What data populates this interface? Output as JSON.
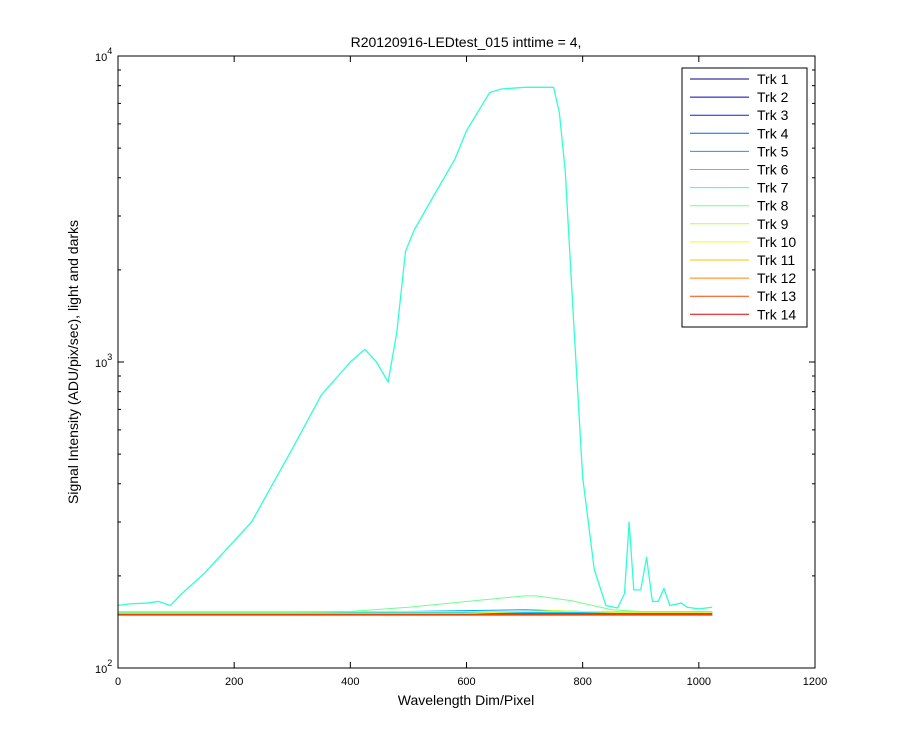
{
  "chart_data": {
    "type": "line",
    "title": "R20120916-LEDtest_015 inttime = 4,",
    "xlabel": "Wavelength Dim/Pixel",
    "ylabel": "Signal Intensity (ADU/pix/sec), light and darks",
    "xlim": [
      0,
      1200
    ],
    "ylim": [
      100,
      10000
    ],
    "yscale": "log",
    "grid": false,
    "legend_position": "top-right",
    "x_ticks": [
      0,
      200,
      400,
      600,
      800,
      1000,
      1200
    ],
    "x_tick_labels": [
      "0",
      "200",
      "400",
      "600",
      "800",
      "1000",
      "1200"
    ],
    "y_ticks": [
      100,
      1000,
      10000
    ],
    "y_tick_labels": [
      {
        "base": "10",
        "exp": "2"
      },
      {
        "base": "10",
        "exp": "3"
      },
      {
        "base": "10",
        "exp": "4"
      }
    ],
    "series": [
      {
        "name": "Trk 1",
        "color": "#00008f",
        "x": [
          0,
          1023
        ],
        "y": [
          149,
          149
        ]
      },
      {
        "name": "Trk 2",
        "color": "#0000c4",
        "x": [
          0,
          1023
        ],
        "y": [
          150,
          150
        ]
      },
      {
        "name": "Trk 3",
        "color": "#0020ff",
        "x": [
          0,
          1023
        ],
        "y": [
          151,
          151
        ]
      },
      {
        "name": "Trk 4",
        "color": "#0060ff",
        "x": [
          0,
          1023
        ],
        "y": [
          151,
          152
        ]
      },
      {
        "name": "Trk 5",
        "color": "#00a0ff",
        "x": [
          0,
          400,
          700,
          800,
          1023
        ],
        "y": [
          152,
          152,
          155,
          153,
          152
        ]
      },
      {
        "name": "Trk 6",
        "color": "#00e0ff",
        "x": [
          0,
          1023
        ],
        "y": [
          152,
          152
        ]
      },
      {
        "name": "Trk 7",
        "color": "#30ffcf",
        "x": [
          0,
          20,
          50,
          70,
          90,
          110,
          150,
          230,
          300,
          350,
          400,
          425,
          445,
          465,
          480,
          495,
          510,
          540,
          580,
          600,
          640,
          660,
          700,
          750,
          760,
          770,
          785,
          800,
          820,
          840,
          860,
          872,
          880,
          888,
          900,
          910,
          920,
          930,
          940,
          950,
          970,
          980,
          1000,
          1023
        ],
        "y": [
          160,
          162,
          163,
          165,
          160,
          175,
          205,
          300,
          520,
          780,
          1000,
          1100,
          1000,
          860,
          1250,
          2300,
          2700,
          3400,
          4600,
          5700,
          7600,
          7800,
          7900,
          7900,
          6500,
          4200,
          1300,
          420,
          210,
          160,
          157,
          175,
          300,
          180,
          180,
          230,
          165,
          165,
          182,
          160,
          163,
          158,
          156,
          158
        ]
      },
      {
        "name": "Trk 8",
        "color": "#70ff8f",
        "x": [
          0,
          300,
          400,
          500,
          600,
          700,
          720,
          780,
          850,
          900,
          1023
        ],
        "y": [
          152,
          152,
          153,
          158,
          165,
          172,
          172,
          166,
          155,
          153,
          153
        ]
      },
      {
        "name": "Trk 9",
        "color": "#b0ff4f",
        "x": [
          0,
          1023
        ],
        "y": [
          153,
          153
        ]
      },
      {
        "name": "Trk 10",
        "color": "#f0ff0f",
        "x": [
          0,
          600,
          750,
          850,
          1023
        ],
        "y": [
          151,
          151,
          154,
          152,
          152
        ]
      },
      {
        "name": "Trk 11",
        "color": "#ffc000",
        "x": [
          0,
          1023
        ],
        "y": [
          150,
          150
        ]
      },
      {
        "name": "Trk 12",
        "color": "#ff8000",
        "x": [
          0,
          1023
        ],
        "y": [
          150,
          150
        ]
      },
      {
        "name": "Trk 13",
        "color": "#ff4000",
        "x": [
          0,
          1023
        ],
        "y": [
          149,
          149
        ]
      },
      {
        "name": "Trk 14",
        "color": "#e00000",
        "x": [
          0,
          1023
        ],
        "y": [
          149,
          149
        ]
      }
    ]
  }
}
